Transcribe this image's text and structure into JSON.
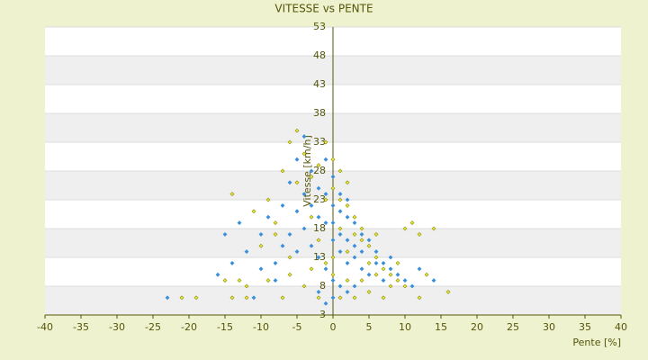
{
  "chart_data": {
    "type": "scatter",
    "title": "VITESSE vs PENTE",
    "x_label": "Pente [%]",
    "y_label": "Vitesse [km/h]",
    "xlim": [
      -40,
      40
    ],
    "xticks": [
      -40,
      -35,
      -30,
      -25,
      -20,
      -15,
      -10,
      -5,
      0,
      5,
      10,
      15,
      20,
      25,
      30,
      35,
      40
    ],
    "ylim": [
      3,
      53
    ],
    "yticks": [
      3,
      8,
      13,
      18,
      23,
      28,
      33,
      38,
      43,
      48,
      53
    ],
    "grid": true,
    "series": [
      {
        "color": "#3a8fd8",
        "x": [
          -23,
          -15,
          -14,
          -13,
          -12,
          -10,
          -9,
          -8,
          -7,
          -6,
          -5,
          -4,
          -3,
          -2,
          -1,
          0,
          1,
          2,
          3,
          4,
          5,
          6,
          7,
          8,
          9,
          10,
          11,
          14,
          -4,
          -3,
          -2,
          -1,
          0,
          1,
          2,
          0,
          1,
          2,
          3,
          -1,
          -2,
          -3,
          0,
          -1,
          -6,
          -5,
          -7,
          4,
          5,
          3,
          -2,
          -16,
          -10,
          -8,
          6,
          7,
          0,
          1,
          2,
          3,
          4,
          -4,
          -5,
          12,
          8,
          -11,
          0,
          -1,
          1,
          2
        ],
        "values": [
          6,
          17,
          12,
          19,
          14,
          17,
          20,
          12,
          22,
          26,
          30,
          34,
          28,
          25,
          24,
          22,
          21,
          20,
          19,
          17,
          16,
          14,
          12,
          11,
          10,
          9,
          8,
          9,
          18,
          15,
          13,
          11,
          9,
          8,
          7,
          16,
          14,
          16,
          13,
          19,
          20,
          22,
          27,
          30,
          17,
          14,
          15,
          11,
          10,
          8,
          7,
          10,
          11,
          9,
          12,
          9,
          19,
          17,
          12,
          15,
          14,
          24,
          21,
          11,
          13,
          6,
          6,
          5,
          24,
          23
        ]
      },
      {
        "color": "#8a8a00",
        "x": [
          -21,
          -19,
          -14,
          -13,
          -12,
          -11,
          -10,
          -9,
          -8,
          -7,
          -6,
          -5,
          -4,
          -3,
          -2,
          -1,
          0,
          1,
          2,
          3,
          4,
          5,
          6,
          7,
          8,
          9,
          10,
          12,
          13,
          16,
          10,
          11,
          -3,
          -1,
          0,
          1,
          2,
          3,
          5,
          7,
          -6,
          -4,
          -2,
          -7,
          -9,
          0,
          2,
          4,
          6,
          8,
          -8,
          -5,
          -3,
          1,
          3,
          5,
          -14,
          -12,
          -15,
          1,
          0,
          -1,
          12,
          9,
          4,
          -2,
          -6,
          6,
          2,
          14
        ],
        "values": [
          6,
          6,
          24,
          9,
          8,
          21,
          15,
          23,
          17,
          28,
          33,
          35,
          31,
          27,
          29,
          23,
          25,
          23,
          22,
          20,
          18,
          15,
          13,
          11,
          10,
          12,
          8,
          6,
          10,
          7,
          18,
          19,
          11,
          12,
          10,
          6,
          9,
          6,
          7,
          6,
          10,
          8,
          6,
          6,
          9,
          13,
          14,
          16,
          10,
          8,
          19,
          26,
          20,
          18,
          17,
          12,
          6,
          6,
          9,
          28,
          30,
          33,
          17,
          9,
          9,
          16,
          13,
          17,
          26,
          18
        ]
      }
    ]
  }
}
